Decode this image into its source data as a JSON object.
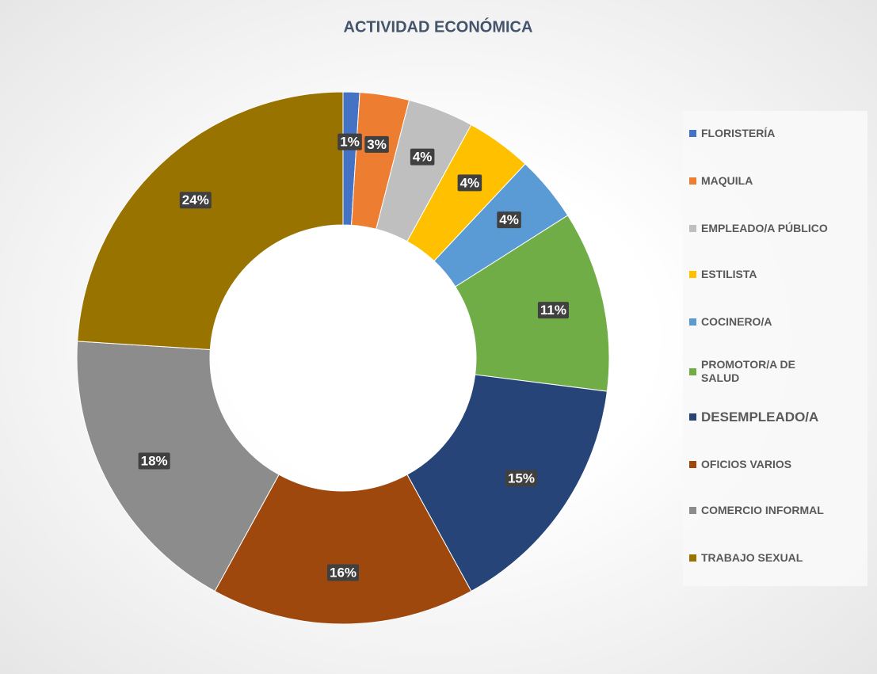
{
  "chart_data": {
    "type": "donut",
    "title": "ACTIVIDAD ECONÓMICA",
    "categories": [
      "FLORISTERÍA",
      "MAQUILA",
      "EMPLEADO/A PÚBLICO",
      "ESTILISTA",
      "COCINERO/A",
      "PROMOTOR/A DE SALUD",
      "DESEMPLEADO/A",
      "OFICIOS VARIOS",
      "COMERCIO INFORMAL",
      "TRABAJO SEXUAL"
    ],
    "values": [
      1,
      3,
      4,
      4,
      4,
      11,
      15,
      16,
      18,
      24
    ],
    "value_labels": [
      "1%",
      "3%",
      "4%",
      "4%",
      "4%",
      "11%",
      "15%",
      "16%",
      "18%",
      "24%"
    ],
    "colors": [
      "#4472c4",
      "#ed7d31",
      "#bfbfbf",
      "#ffc000",
      "#5b9bd5",
      "#70ad47",
      "#264478",
      "#9e480e",
      "#8c8c8c",
      "#997300"
    ],
    "legend": "right"
  }
}
